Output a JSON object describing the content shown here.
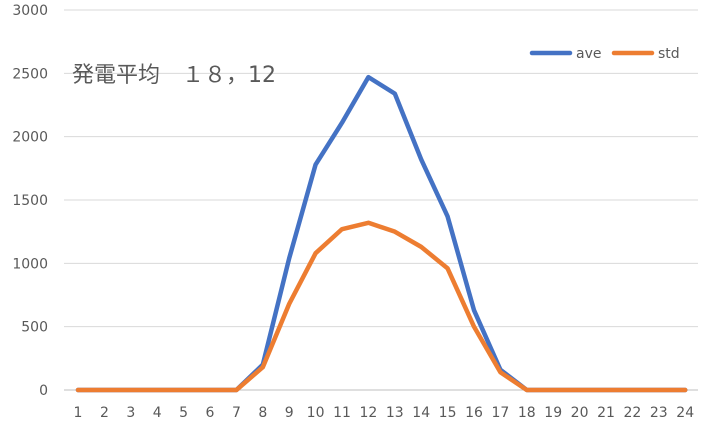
{
  "chart_data": {
    "type": "line",
    "title": "",
    "xlabel": "",
    "ylabel": "",
    "annotation": "発電平均　１８，12",
    "categories": [
      "1",
      "2",
      "3",
      "4",
      "5",
      "6",
      "7",
      "8",
      "9",
      "10",
      "11",
      "12",
      "13",
      "14",
      "15",
      "16",
      "17",
      "18",
      "19",
      "20",
      "21",
      "22",
      "23",
      "24"
    ],
    "ylim": [
      0,
      3000
    ],
    "yticks": [
      "0",
      "500",
      "1000",
      "1500",
      "2000",
      "2500",
      "3000"
    ],
    "grid": true,
    "legend_position": "top-right",
    "series": [
      {
        "name": "ave",
        "color": "#4472C4",
        "values": [
          0,
          0,
          0,
          0,
          0,
          0,
          0,
          200,
          1040,
          1780,
          2110,
          2470,
          2340,
          1820,
          1370,
          630,
          160,
          0,
          0,
          0,
          0,
          0,
          0,
          0
        ]
      },
      {
        "name": "std",
        "color": "#ED7D31",
        "values": [
          0,
          0,
          0,
          0,
          0,
          0,
          0,
          180,
          680,
          1080,
          1270,
          1320,
          1250,
          1130,
          960,
          500,
          140,
          0,
          0,
          0,
          0,
          0,
          0,
          0
        ]
      }
    ]
  }
}
